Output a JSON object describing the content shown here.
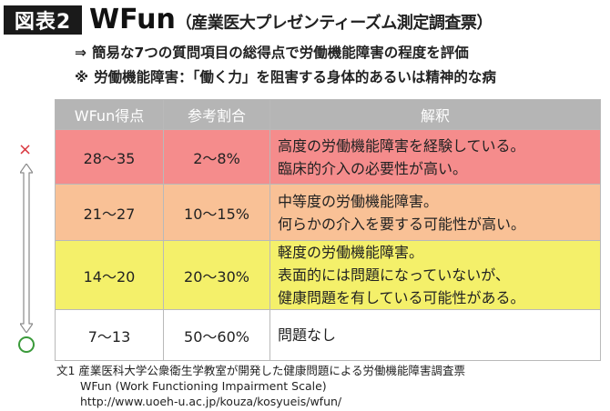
{
  "figure": {
    "label": "図表2",
    "title": "WFun",
    "subtitle": "（産業医大プレゼンティーズム測定調査票）"
  },
  "notes": [
    {
      "mark": "⇒",
      "text": "簡易な7つの質問項目の総得点で労働機能障害の程度を評価"
    },
    {
      "mark": "※",
      "text": "労働機能障害：「働く力」を阻害する身体的あるいは精神的な病"
    }
  ],
  "scale": {
    "high_mark": "×"
  },
  "table": {
    "headers": [
      "WFun得点",
      "参考割合",
      "解釈"
    ],
    "header_color": "#b5b5b5",
    "rows": [
      {
        "score": "28〜35",
        "ratio": "2〜8%",
        "color": "#f58c8c",
        "lines": [
          "高度の労働機能障害を経験している。",
          "臨床的介入の必要性が高い。"
        ]
      },
      {
        "score": "21〜27",
        "ratio": "10〜15%",
        "color": "#f9c196",
        "lines": [
          "中等度の労働機能障害。",
          "何らかの介入を要する可能性が高い。"
        ]
      },
      {
        "score": "14〜20",
        "ratio": "20〜30%",
        "color": "#f4f06a",
        "lines": [
          "軽度の労働機能障害。",
          "表面的には問題になっていないが、",
          "健康問題を有している可能性がある。"
        ]
      },
      {
        "score": "7〜13",
        "ratio": "50〜60%",
        "color": "#ffffff",
        "lines": [
          "問題なし"
        ]
      }
    ]
  },
  "source": {
    "line1": "文1 産業医科大学公衆衛生学教室が開発した健康問題による労働機能障害調査票",
    "line2": "WFun (Work Functioning Impairment Scale)",
    "line3": "http://www.uoeh-u.ac.jp/kouza/kosyueis/wfun/"
  }
}
